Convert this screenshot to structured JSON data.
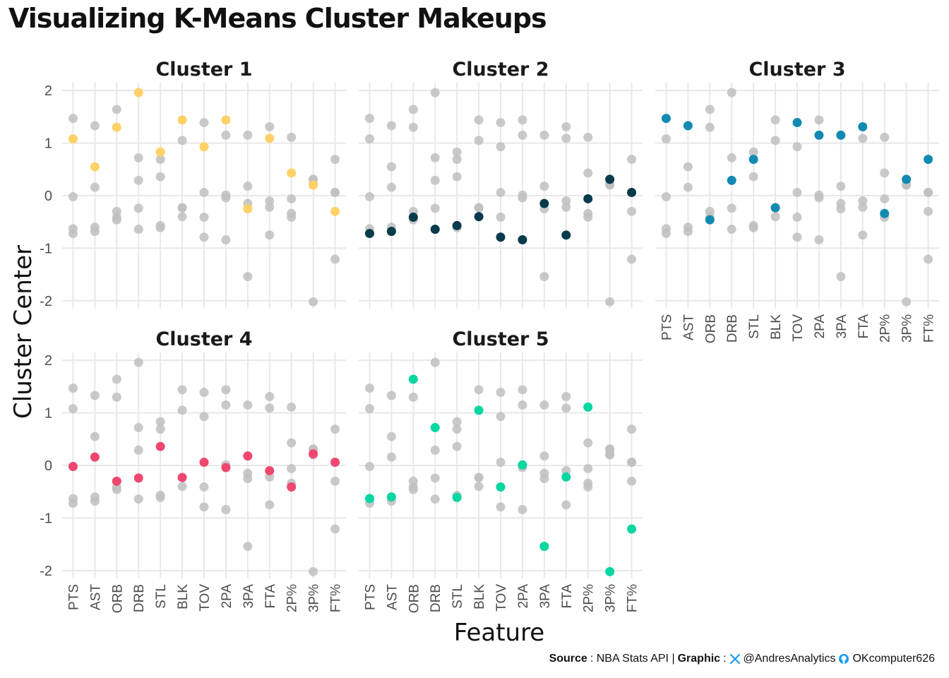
{
  "title": "Visualizing K-Means Cluster Makeups",
  "caption": {
    "source_label": "Source",
    "source_text": ": NBA Stats API |",
    "graphic_label": "Graphic",
    "graphic_sep": ":",
    "twitter_icon": "x-logo-icon",
    "twitter_handle": "@AndresAnalytics",
    "github_icon": "github-icon",
    "github_handle": "OKcomputer626"
  },
  "chart_data": {
    "type": "scatter",
    "xlabel": "Feature",
    "ylabel": "Cluster Center",
    "ylim": [
      -2.15,
      2.15
    ],
    "yticks": [
      2,
      1,
      0,
      -1,
      -2
    ],
    "ytick_labels": [
      "2",
      "1",
      "0",
      "-1",
      "-2"
    ],
    "grid": true,
    "features": [
      "PTS",
      "AST",
      "ORB",
      "DRB",
      "STL",
      "BLK",
      "TOV",
      "2PA",
      "3PA",
      "FTA",
      "2P%",
      "3P%",
      "FT%"
    ],
    "background_color": "#c0c0c0",
    "clusters": [
      {
        "name": "Cluster 1",
        "color": "#ffd166",
        "values": [
          1.08,
          0.55,
          1.3,
          1.96,
          0.83,
          1.44,
          0.93,
          1.44,
          -0.25,
          1.09,
          0.43,
          0.2,
          -0.3
        ]
      },
      {
        "name": "Cluster 2",
        "color": "#073b4c",
        "values": [
          -0.72,
          -0.68,
          -0.41,
          -0.64,
          -0.57,
          -0.4,
          -0.79,
          -0.84,
          -0.15,
          -0.75,
          -0.06,
          0.31,
          0.06
        ]
      },
      {
        "name": "Cluster 3",
        "color": "#118ab2",
        "values": [
          1.47,
          1.33,
          -0.46,
          0.29,
          0.69,
          -0.23,
          1.39,
          1.15,
          1.15,
          1.31,
          -0.34,
          0.31,
          0.69
        ]
      },
      {
        "name": "Cluster 4",
        "color": "#ef476f",
        "values": [
          -0.02,
          0.16,
          -0.3,
          -0.24,
          0.36,
          -0.23,
          0.06,
          -0.04,
          0.18,
          -0.1,
          -0.41,
          0.22,
          0.06
        ]
      },
      {
        "name": "Cluster 5",
        "color": "#06d6a0",
        "values": [
          -0.63,
          -0.6,
          1.64,
          0.72,
          -0.61,
          1.05,
          -0.41,
          0.01,
          -1.54,
          -0.22,
          1.11,
          -2.02,
          -1.21
        ]
      }
    ]
  }
}
